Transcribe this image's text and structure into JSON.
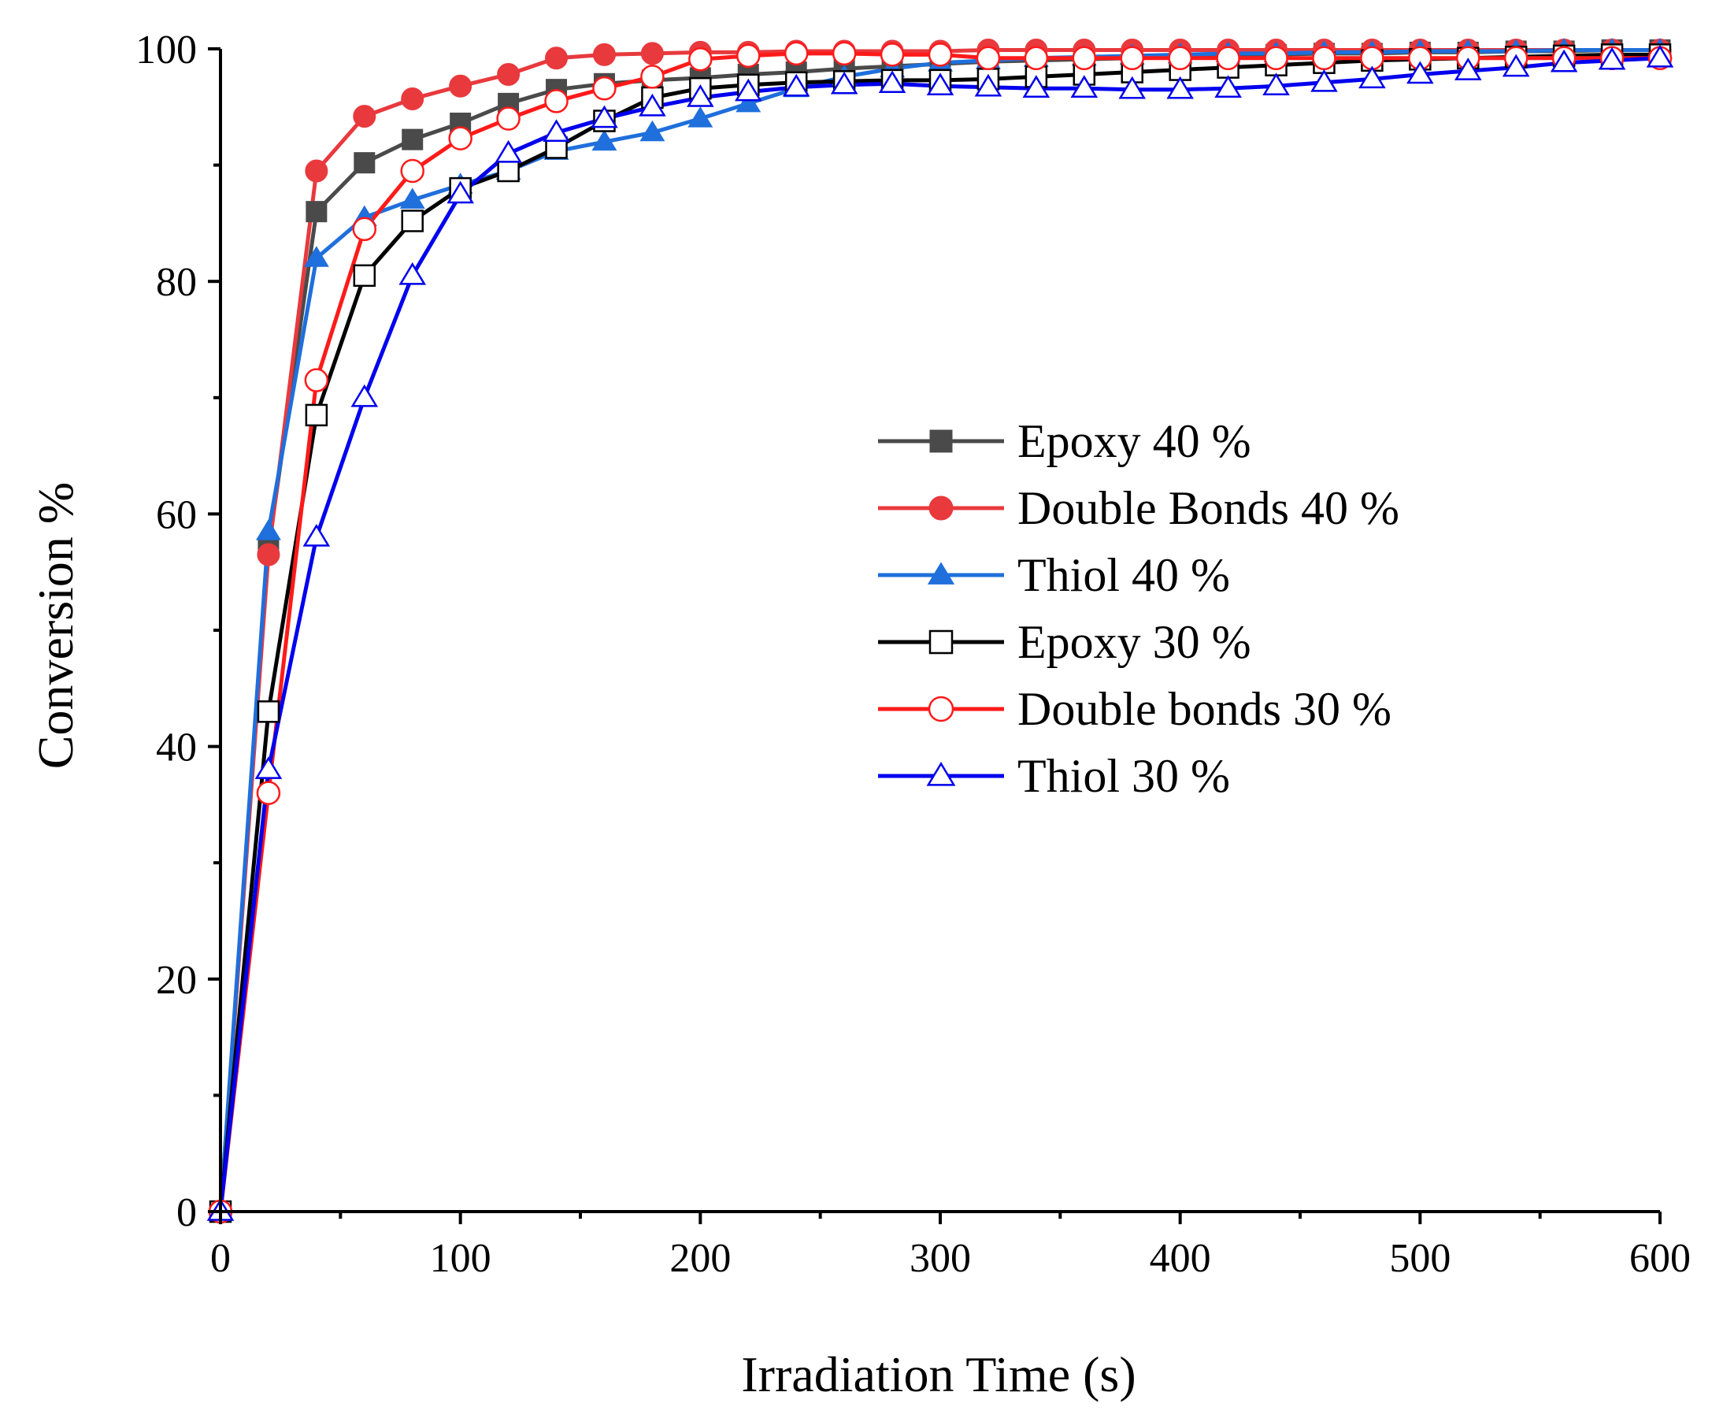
{
  "chart_data": {
    "type": "line",
    "title": "",
    "xlabel": "Irradiation Time (s)",
    "ylabel": "Conversion %",
    "xlim": [
      0,
      600
    ],
    "ylim": [
      0,
      100
    ],
    "xticks": [
      0,
      100,
      200,
      300,
      400,
      500,
      600
    ],
    "yticks": [
      0,
      20,
      40,
      60,
      80,
      100
    ],
    "grid": false,
    "legend_position": "center-right",
    "series": [
      {
        "name": "Epoxy 40 %",
        "color": "#4a4a4a",
        "marker": "square",
        "filled": true,
        "x": [
          0,
          20,
          40,
          60,
          80,
          100,
          120,
          140,
          160,
          180,
          200,
          220,
          240,
          260,
          280,
          300,
          320,
          340,
          360,
          380,
          400,
          420,
          440,
          460,
          480,
          500,
          520,
          540,
          560,
          580,
          600
        ],
        "y": [
          0,
          57,
          86,
          90.2,
          92.2,
          93.6,
          95.3,
          96.5,
          97,
          97.3,
          97.5,
          97.8,
          98,
          98.3,
          98.5,
          98.7,
          98.9,
          99,
          99.1,
          99.2,
          99.3,
          99.4,
          99.5,
          99.6,
          99.6,
          99.7,
          99.7,
          99.8,
          99.8,
          99.9,
          99.9
        ]
      },
      {
        "name": "Double Bonds 40 %",
        "color": "#e8393d",
        "marker": "circle",
        "filled": true,
        "x": [
          0,
          20,
          40,
          60,
          80,
          100,
          120,
          140,
          160,
          180,
          200,
          220,
          240,
          260,
          280,
          300,
          320,
          340,
          360,
          380,
          400,
          420,
          440,
          460,
          480,
          500,
          520,
          540,
          560,
          580,
          600
        ],
        "y": [
          0,
          56.5,
          89.5,
          94.2,
          95.7,
          96.8,
          97.8,
          99.2,
          99.5,
          99.6,
          99.7,
          99.7,
          99.8,
          99.8,
          99.8,
          99.8,
          99.9,
          99.9,
          99.9,
          99.9,
          99.9,
          99.9,
          99.9,
          99.9,
          99.9,
          99.9,
          99.9,
          99.9,
          99.9,
          99.9,
          99.9
        ]
      },
      {
        "name": "Thiol 40 %",
        "color": "#1f6fdc",
        "marker": "triangle",
        "filled": true,
        "x": [
          0,
          20,
          40,
          60,
          80,
          100,
          120,
          140,
          160,
          180,
          200,
          220,
          240,
          260,
          280,
          300,
          320,
          340,
          360,
          380,
          400,
          420,
          440,
          460,
          480,
          500,
          520,
          540,
          560,
          580,
          600
        ],
        "y": [
          0,
          58.5,
          82,
          85.5,
          87,
          88.3,
          89.5,
          91.2,
          92,
          92.8,
          94,
          95.3,
          96.6,
          97.6,
          98.3,
          98.8,
          99,
          99.2,
          99.3,
          99.4,
          99.5,
          99.6,
          99.6,
          99.7,
          99.7,
          99.8,
          99.8,
          99.8,
          99.9,
          99.9,
          99.9
        ]
      },
      {
        "name": "Epoxy 30 %",
        "color": "#000000",
        "marker": "square",
        "filled": false,
        "x": [
          0,
          20,
          40,
          60,
          80,
          100,
          120,
          140,
          160,
          180,
          200,
          220,
          240,
          260,
          280,
          300,
          320,
          340,
          360,
          380,
          400,
          420,
          440,
          460,
          480,
          500,
          520,
          540,
          560,
          580,
          600
        ],
        "y": [
          0,
          43,
          68.5,
          80.5,
          85.2,
          88,
          89.5,
          91.5,
          93.8,
          95.8,
          96.6,
          96.9,
          97.1,
          97.2,
          97.3,
          97.3,
          97.4,
          97.6,
          97.8,
          98,
          98.2,
          98.4,
          98.6,
          98.8,
          99,
          99.1,
          99.2,
          99.3,
          99.4,
          99.5,
          99.5
        ]
      },
      {
        "name": "Double bonds 30 %",
        "color": "#ff1a1a",
        "marker": "circle",
        "filled": false,
        "x": [
          0,
          20,
          40,
          60,
          80,
          100,
          120,
          140,
          160,
          180,
          200,
          220,
          240,
          260,
          280,
          300,
          320,
          340,
          360,
          380,
          400,
          420,
          440,
          460,
          480,
          500,
          520,
          540,
          560,
          580,
          600
        ],
        "y": [
          0,
          36,
          71.5,
          84.5,
          89.5,
          92.3,
          94,
          95.5,
          96.6,
          97.6,
          99.1,
          99.4,
          99.6,
          99.6,
          99.5,
          99.5,
          99.2,
          99.2,
          99.2,
          99.2,
          99.2,
          99.2,
          99.2,
          99.2,
          99.2,
          99.2,
          99.2,
          99.2,
          99.2,
          99.2,
          99.2
        ]
      },
      {
        "name": "Thiol 30 %",
        "color": "#0000ee",
        "marker": "triangle",
        "filled": false,
        "x": [
          0,
          20,
          40,
          60,
          80,
          100,
          120,
          140,
          160,
          180,
          200,
          220,
          240,
          260,
          280,
          300,
          320,
          340,
          360,
          380,
          400,
          420,
          440,
          460,
          480,
          500,
          520,
          540,
          560,
          580,
          600
        ],
        "y": [
          0,
          38,
          58,
          70,
          80.5,
          87.5,
          91,
          92.8,
          94,
          95,
          95.8,
          96.3,
          96.7,
          96.9,
          97,
          96.8,
          96.7,
          96.6,
          96.6,
          96.5,
          96.5,
          96.6,
          96.8,
          97.1,
          97.4,
          97.8,
          98.1,
          98.4,
          98.8,
          99,
          99.2
        ]
      }
    ]
  }
}
